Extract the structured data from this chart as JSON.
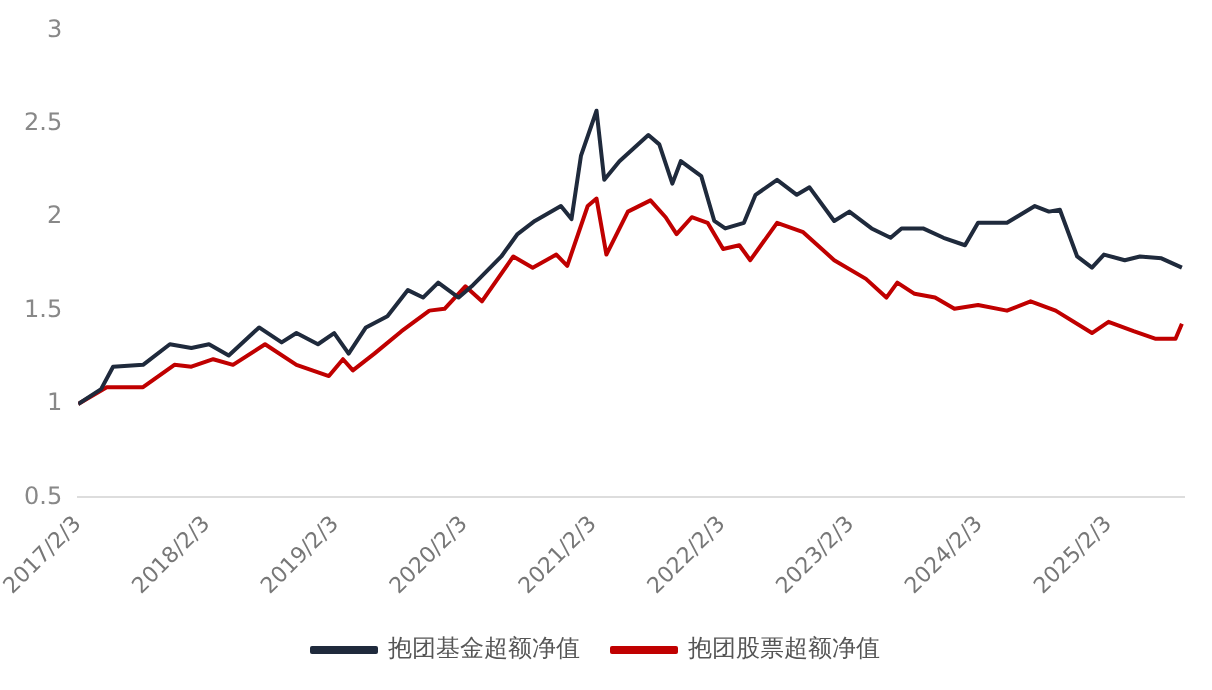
{
  "chart_data": {
    "type": "line",
    "legend": "bottom",
    "grid": false,
    "marker": "none",
    "line_style": "solid",
    "xlim": [
      "2017-02-03",
      "2025-09-05"
    ],
    "ylim": [
      0.5,
      3
    ],
    "yticks": [
      0.5,
      1,
      1.5,
      2,
      2.5,
      3
    ],
    "xticks": [
      {
        "value": "2017-02-03",
        "label": "2017/2/3"
      },
      {
        "value": "2018-02-03",
        "label": "2018/2/3"
      },
      {
        "value": "2019-02-03",
        "label": "2019/2/3"
      },
      {
        "value": "2020-02-03",
        "label": "2020/2/3"
      },
      {
        "value": "2021-02-03",
        "label": "2021/2/3"
      },
      {
        "value": "2022-02-03",
        "label": "2022/2/3"
      },
      {
        "value": "2023-02-03",
        "label": "2023/2/3"
      },
      {
        "value": "2024-02-03",
        "label": "2024/2/3"
      },
      {
        "value": "2025-02-03",
        "label": "2025/2/3"
      }
    ],
    "series": [
      {
        "name": "抱团基金超额净值",
        "color": "#1f2a3c",
        "x": [
          "2017-02-03",
          "2017-04-09",
          "2017-05-13",
          "2017-08-06",
          "2017-10-21",
          "2017-12-21",
          "2018-02-09",
          "2018-04-06",
          "2018-07-01",
          "2018-09-03",
          "2018-10-15",
          "2018-12-15",
          "2019-01-30",
          "2019-03-12",
          "2019-04-30",
          "2019-06-30",
          "2019-08-27",
          "2019-10-09",
          "2019-11-21",
          "2020-01-18",
          "2020-02-24",
          "2020-05-18",
          "2020-07-03",
          "2020-08-21",
          "2020-11-03",
          "2020-12-03",
          "2020-12-30",
          "2021-02-12",
          "2021-03-06",
          "2021-04-18",
          "2021-07-09",
          "2021-08-09",
          "2021-09-15",
          "2021-10-09",
          "2021-12-06",
          "2022-01-12",
          "2022-02-12",
          "2022-04-06",
          "2022-05-09",
          "2022-07-09",
          "2022-09-03",
          "2022-10-09",
          "2022-12-18",
          "2023-01-30",
          "2023-04-03",
          "2023-05-27",
          "2023-06-27",
          "2023-08-27",
          "2023-10-24",
          "2023-12-24",
          "2024-01-30",
          "2024-04-21",
          "2024-07-09",
          "2024-08-18",
          "2024-09-18",
          "2024-11-06",
          "2024-12-18",
          "2025-01-21",
          "2025-03-21",
          "2025-05-03",
          "2025-07-03",
          "2025-08-30"
        ],
        "values": [
          1.0,
          1.08,
          1.2,
          1.21,
          1.32,
          1.3,
          1.32,
          1.26,
          1.41,
          1.33,
          1.38,
          1.32,
          1.38,
          1.27,
          1.41,
          1.47,
          1.61,
          1.57,
          1.65,
          1.57,
          1.63,
          1.79,
          1.91,
          1.98,
          2.06,
          1.99,
          2.33,
          2.57,
          2.2,
          2.3,
          2.44,
          2.39,
          2.18,
          2.3,
          2.22,
          1.98,
          1.94,
          1.97,
          2.12,
          2.2,
          2.12,
          2.16,
          1.98,
          2.03,
          1.94,
          1.89,
          1.94,
          1.94,
          1.89,
          1.85,
          1.97,
          1.97,
          2.06,
          2.03,
          2.04,
          1.79,
          1.73,
          1.8,
          1.77,
          1.79,
          1.78,
          1.73
        ]
      },
      {
        "name": "抱团股票超额净值",
        "color": "#c00000",
        "x": [
          "2017-02-03",
          "2017-04-25",
          "2017-08-06",
          "2017-11-03",
          "2017-12-21",
          "2018-02-21",
          "2018-04-18",
          "2018-07-18",
          "2018-10-15",
          "2019-01-15",
          "2019-02-24",
          "2019-03-24",
          "2019-05-24",
          "2019-08-09",
          "2019-10-27",
          "2019-12-09",
          "2020-02-06",
          "2020-03-24",
          "2020-06-21",
          "2020-08-15",
          "2020-10-21",
          "2020-11-21",
          "2021-01-18",
          "2021-02-12",
          "2021-03-12",
          "2021-05-12",
          "2021-07-15",
          "2021-08-27",
          "2021-09-27",
          "2021-11-09",
          "2021-12-24",
          "2022-02-06",
          "2022-03-24",
          "2022-04-24",
          "2022-07-09",
          "2022-09-21",
          "2022-12-18",
          "2023-03-18",
          "2023-05-15",
          "2023-06-15",
          "2023-08-03",
          "2023-09-30",
          "2023-11-24",
          "2024-01-30",
          "2024-04-21",
          "2024-06-27",
          "2024-09-06",
          "2024-12-18",
          "2025-02-03",
          "2025-04-15",
          "2025-06-15",
          "2025-08-12",
          "2025-08-30"
        ],
        "values": [
          1.0,
          1.09,
          1.09,
          1.21,
          1.2,
          1.24,
          1.21,
          1.32,
          1.21,
          1.15,
          1.24,
          1.18,
          1.27,
          1.39,
          1.5,
          1.51,
          1.63,
          1.55,
          1.79,
          1.73,
          1.8,
          1.74,
          2.06,
          2.1,
          1.8,
          2.03,
          2.09,
          2.0,
          1.91,
          2.0,
          1.97,
          1.83,
          1.85,
          1.77,
          1.97,
          1.92,
          1.77,
          1.67,
          1.57,
          1.65,
          1.59,
          1.57,
          1.51,
          1.53,
          1.5,
          1.55,
          1.5,
          1.38,
          1.44,
          1.39,
          1.35,
          1.35,
          1.43
        ]
      }
    ]
  }
}
